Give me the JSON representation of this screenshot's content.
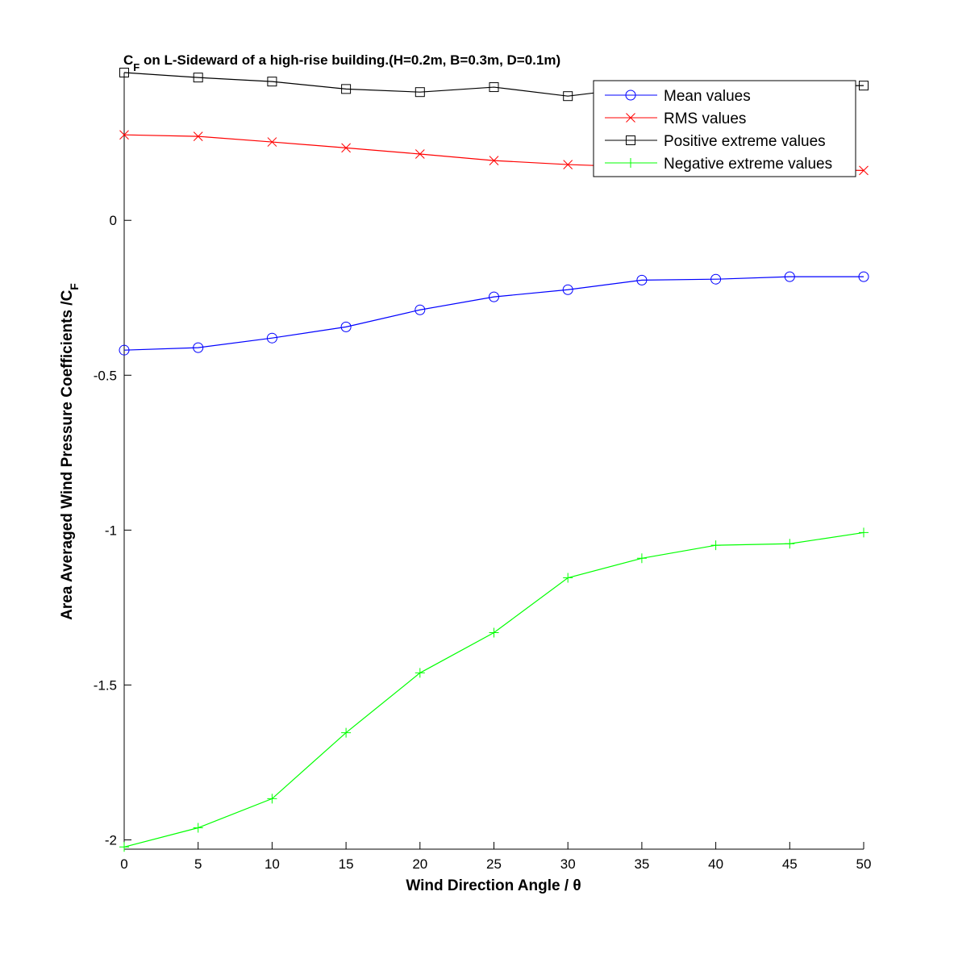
{
  "chart_data": {
    "type": "line",
    "title_main": "C",
    "title_sub": "F",
    "title_rest": " on L-Sideward of a high-rise building.(H=0.2m, B=0.3m, D=0.1m)",
    "xlabel": "Wind Direction Angle  / θ",
    "ylabel_main": "Area Averaged Wind Pressure Coefficients /C",
    "ylabel_sub": "F",
    "xlim": [
      0,
      50
    ],
    "ylim": [
      -2.03,
      0.477
    ],
    "xticks": [
      0,
      5,
      10,
      15,
      20,
      25,
      30,
      35,
      40,
      45,
      50
    ],
    "yticks": [
      -2,
      -1.5,
      -1,
      -0.5,
      0
    ],
    "ytick_labels": [
      "-2",
      "-1.5",
      "-1",
      "-0.5",
      "0"
    ],
    "grid": false,
    "legend_position": "top-right",
    "x": [
      0,
      5,
      10,
      15,
      20,
      25,
      30,
      35,
      40,
      45,
      50
    ],
    "series": [
      {
        "name": "Mean values",
        "color": "#0000ff",
        "marker": "circle",
        "values": [
          -0.419,
          -0.411,
          -0.38,
          -0.344,
          -0.289,
          -0.247,
          -0.224,
          -0.193,
          -0.19,
          -0.182,
          -0.182
        ]
      },
      {
        "name": "RMS values",
        "color": "#ff0000",
        "marker": "x",
        "values": [
          0.276,
          0.271,
          0.253,
          0.234,
          0.214,
          0.193,
          0.18,
          0.172,
          0.167,
          0.164,
          0.161
        ]
      },
      {
        "name": "Positive extreme values",
        "color": "#000000",
        "marker": "square",
        "values": [
          0.477,
          0.461,
          0.448,
          0.424,
          0.414,
          0.43,
          0.401,
          0.43,
          0.432,
          0.433,
          0.435
        ]
      },
      {
        "name": "Negative extreme values",
        "color": "#00ff00",
        "marker": "plus",
        "values": [
          -2.023,
          -1.961,
          -1.867,
          -1.654,
          -1.461,
          -1.331,
          -1.154,
          -1.091,
          -1.049,
          -1.044,
          -1.008
        ]
      }
    ]
  }
}
